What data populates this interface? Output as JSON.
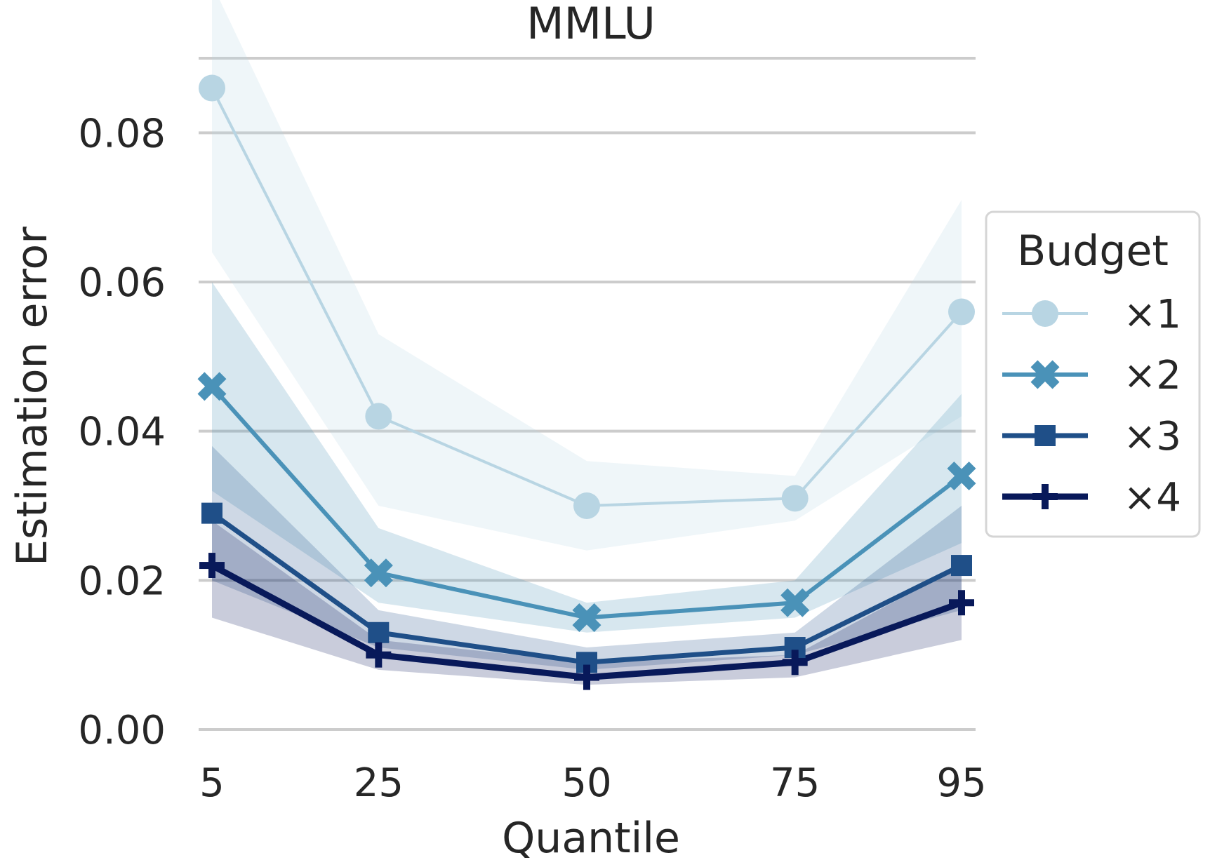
{
  "chart_data": {
    "type": "line",
    "title": "MMLU",
    "xlabel": "Quantile",
    "ylabel": "Estimation error",
    "x": [
      5,
      25,
      50,
      75,
      95
    ],
    "x_tick_labels": [
      "5",
      "25",
      "50",
      "75",
      "95"
    ],
    "y_ticks": [
      0.0,
      0.02,
      0.04,
      0.06,
      0.08
    ],
    "y_tick_labels": [
      "0.00",
      "0.02",
      "0.04",
      "0.06",
      "0.08"
    ],
    "ylim": [
      0,
      0.09
    ],
    "xlim": [
      5,
      95
    ],
    "grid": "horizontal",
    "legend": {
      "title": "Budget",
      "position": "right"
    },
    "series": [
      {
        "name": "×1",
        "color": "#b8d5e3",
        "marker": "circle",
        "values": [
          0.086,
          0.042,
          0.03,
          0.031,
          0.056
        ],
        "band_upper": [
          0.1,
          0.053,
          0.036,
          0.034,
          0.071
        ],
        "band_lower": [
          0.064,
          0.03,
          0.024,
          0.028,
          0.042
        ]
      },
      {
        "name": "×2",
        "color": "#4a92b8",
        "marker": "x",
        "values": [
          0.046,
          0.021,
          0.015,
          0.017,
          0.034
        ],
        "band_upper": [
          0.06,
          0.027,
          0.017,
          0.02,
          0.045
        ],
        "band_lower": [
          0.032,
          0.017,
          0.013,
          0.015,
          0.025
        ]
      },
      {
        "name": "×3",
        "color": "#1f4f88",
        "marker": "square",
        "values": [
          0.029,
          0.013,
          0.009,
          0.011,
          0.022
        ],
        "band_upper": [
          0.038,
          0.016,
          0.011,
          0.013,
          0.03
        ],
        "band_lower": [
          0.02,
          0.011,
          0.008,
          0.01,
          0.016
        ]
      },
      {
        "name": "×4",
        "color": "#08195a",
        "marker": "plus",
        "values": [
          0.022,
          0.01,
          0.007,
          0.009,
          0.017
        ],
        "band_upper": [
          0.028,
          0.012,
          0.009,
          0.01,
          0.022
        ],
        "band_lower": [
          0.015,
          0.008,
          0.006,
          0.007,
          0.012
        ]
      }
    ]
  }
}
